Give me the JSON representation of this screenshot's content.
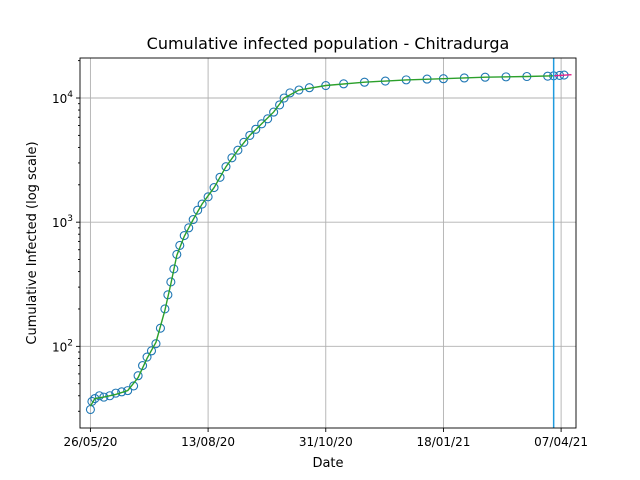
{
  "chart_data": {
    "type": "scatter",
    "title": "Cumulative infected population - Chitradurga",
    "xlabel": "Date",
    "ylabel": "Cumulative Infected (log scale)",
    "yscale": "log",
    "grid": true,
    "xlim": [
      "2020-05-19",
      "2021-04-17"
    ],
    "ylim": [
      22,
      21000
    ],
    "x_ticks": [
      {
        "date": "2020-05-26",
        "label": "26/05/20"
      },
      {
        "date": "2020-08-13",
        "label": "13/08/20"
      },
      {
        "date": "2020-10-31",
        "label": "31/10/20"
      },
      {
        "date": "2021-01-18",
        "label": "18/01/21"
      },
      {
        "date": "2021-04-07",
        "label": "07/04/21"
      }
    ],
    "y_ticks": [
      {
        "value": 100,
        "base": "10",
        "exp": "2"
      },
      {
        "value": 1000,
        "base": "10",
        "exp": "3"
      },
      {
        "value": 10000,
        "base": "10",
        "exp": "4"
      }
    ],
    "vline": {
      "date": "2021-04-02",
      "color": "#1f9bde"
    },
    "colors": {
      "observed": "#1f77b4",
      "fit": "#2ca02c",
      "forecast": "#e0218a"
    },
    "series": [
      {
        "style": "markers",
        "points": [
          [
            "2020-05-26",
            31
          ],
          [
            "2020-05-27",
            36
          ],
          [
            "2020-05-29",
            38
          ],
          [
            "2020-06-01",
            40
          ],
          [
            "2020-06-04",
            39
          ],
          [
            "2020-06-08",
            40
          ],
          [
            "2020-06-12",
            42
          ],
          [
            "2020-06-16",
            43
          ],
          [
            "2020-06-20",
            44
          ],
          [
            "2020-06-24",
            48
          ],
          [
            "2020-06-27",
            58
          ],
          [
            "2020-06-30",
            70
          ],
          [
            "2020-07-03",
            82
          ],
          [
            "2020-07-06",
            92
          ],
          [
            "2020-07-09",
            105
          ],
          [
            "2020-07-12",
            140
          ],
          [
            "2020-07-15",
            200
          ],
          [
            "2020-07-17",
            260
          ],
          [
            "2020-07-19",
            330
          ],
          [
            "2020-07-21",
            420
          ],
          [
            "2020-07-23",
            550
          ],
          [
            "2020-07-25",
            650
          ],
          [
            "2020-07-28",
            780
          ],
          [
            "2020-07-31",
            900
          ],
          [
            "2020-08-03",
            1050
          ],
          [
            "2020-08-06",
            1250
          ],
          [
            "2020-08-09",
            1400
          ],
          [
            "2020-08-13",
            1600
          ],
          [
            "2020-08-17",
            1900
          ],
          [
            "2020-08-21",
            2300
          ],
          [
            "2020-08-25",
            2800
          ],
          [
            "2020-08-29",
            3300
          ],
          [
            "2020-09-02",
            3800
          ],
          [
            "2020-09-06",
            4400
          ],
          [
            "2020-09-10",
            5000
          ],
          [
            "2020-09-14",
            5600
          ],
          [
            "2020-09-18",
            6200
          ],
          [
            "2020-09-22",
            6800
          ],
          [
            "2020-09-26",
            7700
          ],
          [
            "2020-09-30",
            8800
          ],
          [
            "2020-10-03",
            10000
          ],
          [
            "2020-10-07",
            11000
          ],
          [
            "2020-10-13",
            11600
          ],
          [
            "2020-10-20",
            12100
          ],
          [
            "2020-10-31",
            12600
          ],
          [
            "2020-11-12",
            13000
          ],
          [
            "2020-11-26",
            13400
          ],
          [
            "2020-12-10",
            13700
          ],
          [
            "2020-12-24",
            14000
          ],
          [
            "2021-01-07",
            14200
          ],
          [
            "2021-01-18",
            14300
          ],
          [
            "2021-02-01",
            14500
          ],
          [
            "2021-02-15",
            14700
          ],
          [
            "2021-03-01",
            14800
          ],
          [
            "2021-03-15",
            14900
          ],
          [
            "2021-03-29",
            15000
          ],
          [
            "2021-04-02",
            15100
          ],
          [
            "2021-04-06",
            15200
          ],
          [
            "2021-04-09",
            15300
          ]
        ]
      },
      {
        "style": "fit",
        "points": [
          [
            "2020-05-26",
            33
          ],
          [
            "2020-05-29",
            38
          ],
          [
            "2020-06-04",
            39
          ],
          [
            "2020-06-12",
            41
          ],
          [
            "2020-06-20",
            44
          ],
          [
            "2020-06-27",
            56
          ],
          [
            "2020-07-03",
            80
          ],
          [
            "2020-07-09",
            108
          ],
          [
            "2020-07-15",
            195
          ],
          [
            "2020-07-19",
            320
          ],
          [
            "2020-07-23",
            540
          ],
          [
            "2020-07-28",
            770
          ],
          [
            "2020-08-03",
            1050
          ],
          [
            "2020-08-09",
            1400
          ],
          [
            "2020-08-17",
            1900
          ],
          [
            "2020-08-25",
            2800
          ],
          [
            "2020-09-02",
            3800
          ],
          [
            "2020-09-10",
            5000
          ],
          [
            "2020-09-18",
            6200
          ],
          [
            "2020-09-26",
            7700
          ],
          [
            "2020-10-03",
            10000
          ],
          [
            "2020-10-13",
            11600
          ],
          [
            "2020-10-31",
            12600
          ],
          [
            "2020-11-26",
            13400
          ],
          [
            "2020-12-24",
            14000
          ],
          [
            "2021-01-18",
            14300
          ],
          [
            "2021-02-15",
            14700
          ],
          [
            "2021-03-15",
            14900
          ],
          [
            "2021-04-02",
            15100
          ]
        ]
      },
      {
        "style": "forecast",
        "points": [
          [
            "2021-04-02",
            15100
          ],
          [
            "2021-04-06",
            15200
          ],
          [
            "2021-04-10",
            15300
          ],
          [
            "2021-04-14",
            15400
          ]
        ]
      }
    ]
  }
}
